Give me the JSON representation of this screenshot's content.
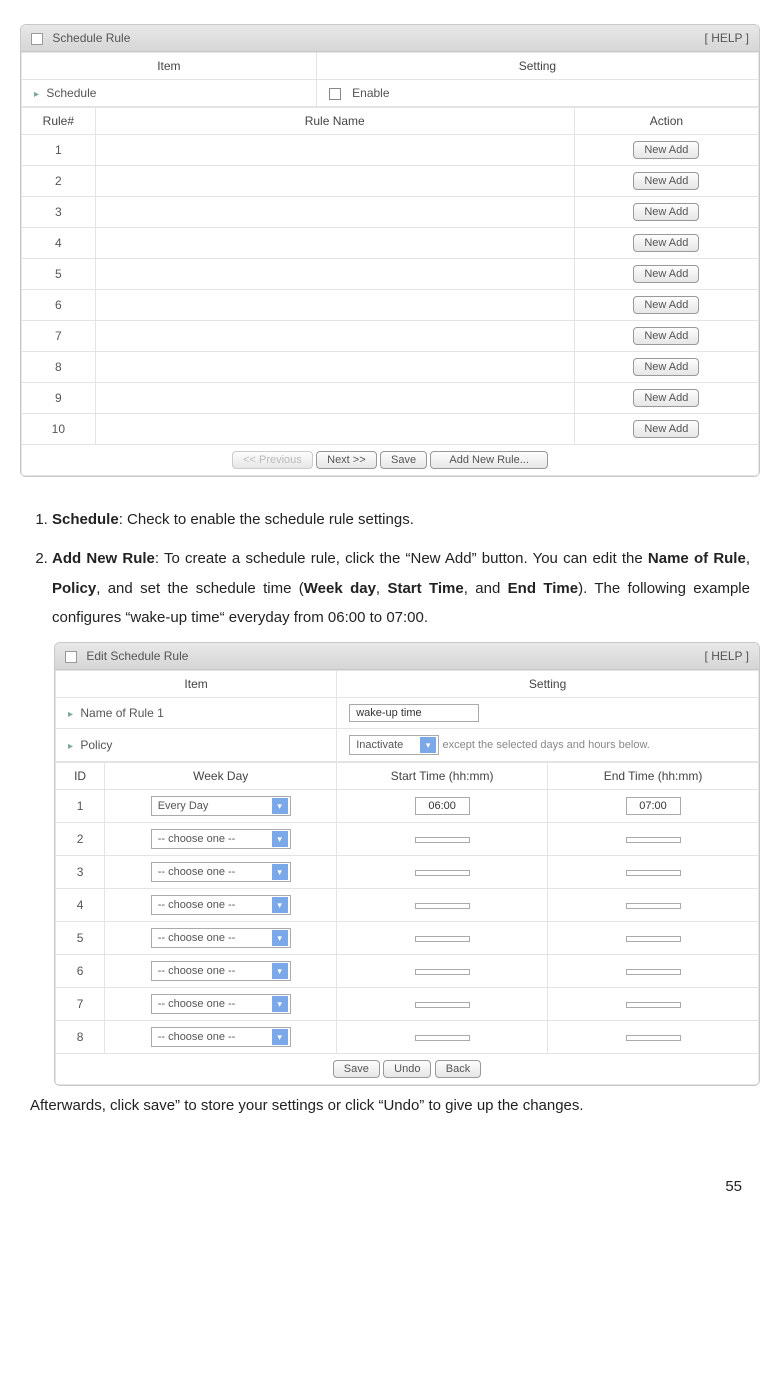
{
  "panel1": {
    "title": "Schedule Rule",
    "help": "[ HELP ]",
    "col_item": "Item",
    "col_setting": "Setting",
    "schedule_label": "Schedule",
    "enable_label": "Enable",
    "col_rule_num": "Rule#",
    "col_rule_name": "Rule Name",
    "col_action": "Action",
    "rows": [
      "1",
      "2",
      "3",
      "4",
      "5",
      "6",
      "7",
      "8",
      "9",
      "10"
    ],
    "btn_new_add": "New Add",
    "btn_prev": "<< Previous",
    "btn_next": "Next >>",
    "btn_save": "Save",
    "btn_add_rule": "Add New Rule..."
  },
  "instructions": {
    "item1_bold": "Schedule",
    "item1_rest": ": Check to enable the schedule rule settings.",
    "item2_bold": "Add New Rule",
    "item2_rest_a": ": To create a schedule rule, click the “New Add” button. You can edit the ",
    "b_name": "Name of Rule",
    "c1": ", ",
    "b_policy": "Policy",
    "c2": ", and set the schedule time (",
    "b_week": "Week day",
    "c3": ", ",
    "b_start": "Start Time",
    "c4": ", and ",
    "b_end": "End Time",
    "c5": "). The following example configures “wake-up time“ everyday from 06:00 to 07:00."
  },
  "panel2": {
    "title": "Edit Schedule Rule",
    "help": "[ HELP ]",
    "col_item": "Item",
    "col_setting": "Setting",
    "name_label": "Name of Rule 1",
    "name_value": "wake-up time",
    "policy_label": "Policy",
    "policy_value": "Inactivate",
    "policy_note": "except the selected days and hours below.",
    "col_id": "ID",
    "col_week": "Week Day",
    "col_start": "Start Time (hh:mm)",
    "col_end": "End Time (hh:mm)",
    "rows": [
      {
        "id": "1",
        "week": "Every Day",
        "start": "06:00",
        "end": "07:00"
      },
      {
        "id": "2",
        "week": "-- choose one --",
        "start": "",
        "end": ""
      },
      {
        "id": "3",
        "week": "-- choose one --",
        "start": "",
        "end": ""
      },
      {
        "id": "4",
        "week": "-- choose one --",
        "start": "",
        "end": ""
      },
      {
        "id": "5",
        "week": "-- choose one --",
        "start": "",
        "end": ""
      },
      {
        "id": "6",
        "week": "-- choose one --",
        "start": "",
        "end": ""
      },
      {
        "id": "7",
        "week": "-- choose one --",
        "start": "",
        "end": ""
      },
      {
        "id": "8",
        "week": "-- choose one --",
        "start": "",
        "end": ""
      }
    ],
    "btn_save": "Save",
    "btn_undo": "Undo",
    "btn_back": "Back"
  },
  "afterward": "Afterwards, click save” to store your settings or click “Undo” to give up the changes.",
  "page_number": "55"
}
